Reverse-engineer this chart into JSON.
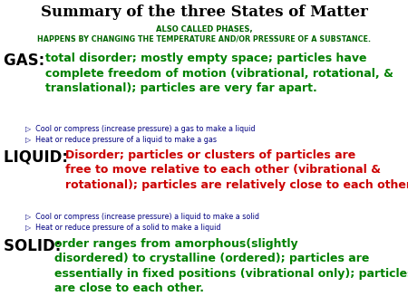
{
  "title": "Summary of the three States of Matter",
  "subtitle1": "ALSO CALLED PHASES,",
  "subtitle2": "HAPPENS BY CHANGING THE TEMPERATURE AND/OR PRESSURE OF A SUBSTANCE.",
  "title_color": "#000000",
  "subtitle_color": "#006400",
  "bg_color": "#ffffff",
  "gas_label": "GAS: ",
  "gas_text": "total disorder; mostly empty space; particles have\ncomplete freedom of motion (vibrational, rotational, &\ntranslational); particles are very far apart.",
  "gas_label_color": "#000000",
  "gas_text_color": "#008000",
  "gas_bullet1": "▷  Cool or compress (increase pressure) a gas to make a liquid",
  "gas_bullet2": "▷  Heat or reduce pressure of a liquid to make a gas",
  "gas_bullet_color": "#000080",
  "liquid_label": "LIQUID: ",
  "liquid_text": "Disorder; particles or clusters of particles are\nfree to move relative to each other (vibrational &\nrotational); particles are relatively close to each other.",
  "liquid_label_color": "#000000",
  "liquid_text_color": "#cc0000",
  "liquid_bullet1": "▷  Cool or compress (increase pressure) a liquid to make a solid",
  "liquid_bullet2": "▷  Heat or reduce pressure of a solid to make a liquid",
  "liquid_bullet_color": "#000080",
  "solid_label": "SOLID: ",
  "solid_text": "order ranges from amorphous(slightly\ndisordered) to crystalline (ordered); particles are\nessentially in fixed positions (vibrational only); particles\nare close to each other.",
  "solid_label_color": "#000000",
  "solid_text_color": "#008000",
  "figw": 4.5,
  "figh": 3.38,
  "dpi": 100
}
